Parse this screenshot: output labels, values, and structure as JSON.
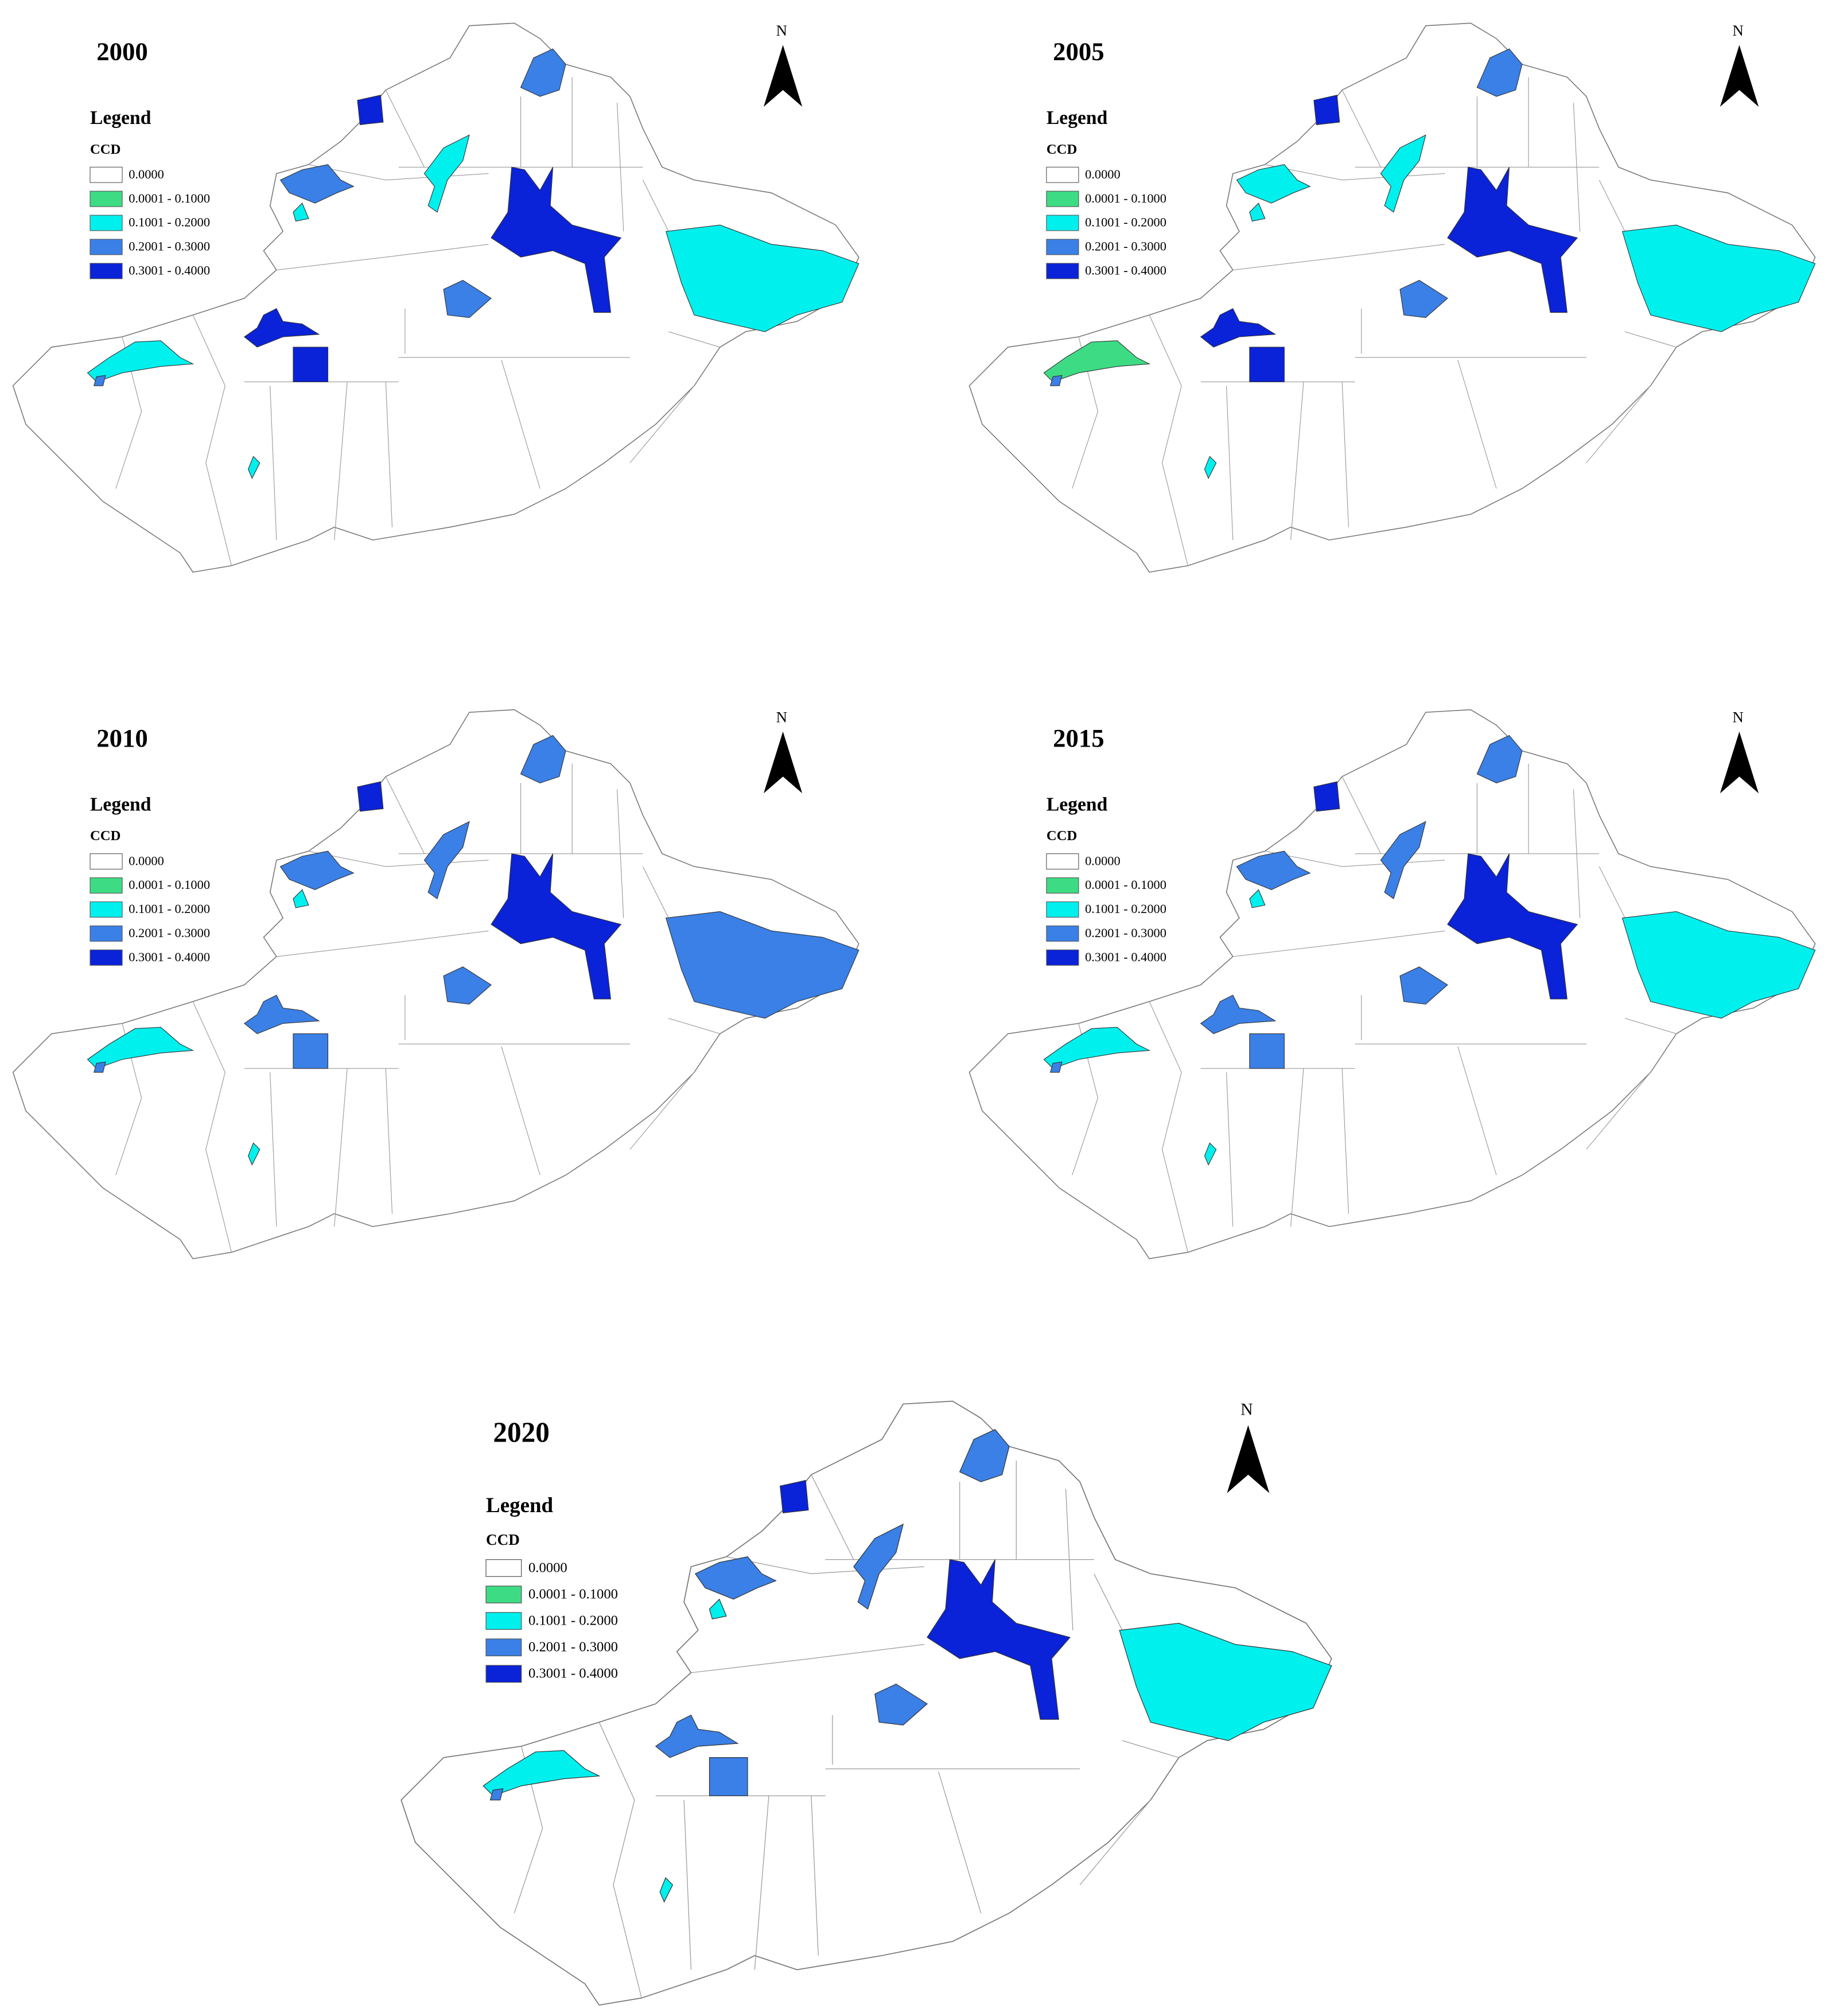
{
  "legend_title": "Legend",
  "legend_subtitle": "CCD",
  "north": "N",
  "classes": [
    {
      "label": "0.0000",
      "color": "#ffffff"
    },
    {
      "label": "0.0001 - 0.1000",
      "color": "#3ddc84"
    },
    {
      "label": "0.1001 - 0.2000",
      "color": "#00f0ee"
    },
    {
      "label": "0.2001 - 0.3000",
      "color": "#3a80e6"
    },
    {
      "label": "0.3001 - 0.4000",
      "color": "#0a22d8"
    }
  ],
  "maps": [
    {
      "year": "2000",
      "regions": [
        3,
        4,
        2,
        3,
        2,
        4,
        2,
        3,
        4,
        4,
        2,
        3,
        2
      ]
    },
    {
      "year": "2005",
      "regions": [
        3,
        4,
        2,
        2,
        2,
        4,
        2,
        3,
        4,
        4,
        1,
        3,
        2
      ]
    },
    {
      "year": "2010",
      "regions": [
        3,
        4,
        3,
        3,
        2,
        4,
        3,
        3,
        3,
        3,
        2,
        3,
        2
      ]
    },
    {
      "year": "2015",
      "regions": [
        3,
        4,
        3,
        3,
        2,
        4,
        2,
        3,
        3,
        3,
        2,
        3,
        2
      ]
    },
    {
      "year": "2020",
      "regions": [
        3,
        4,
        3,
        3,
        2,
        4,
        2,
        3,
        3,
        3,
        2,
        3,
        2
      ]
    }
  ]
}
